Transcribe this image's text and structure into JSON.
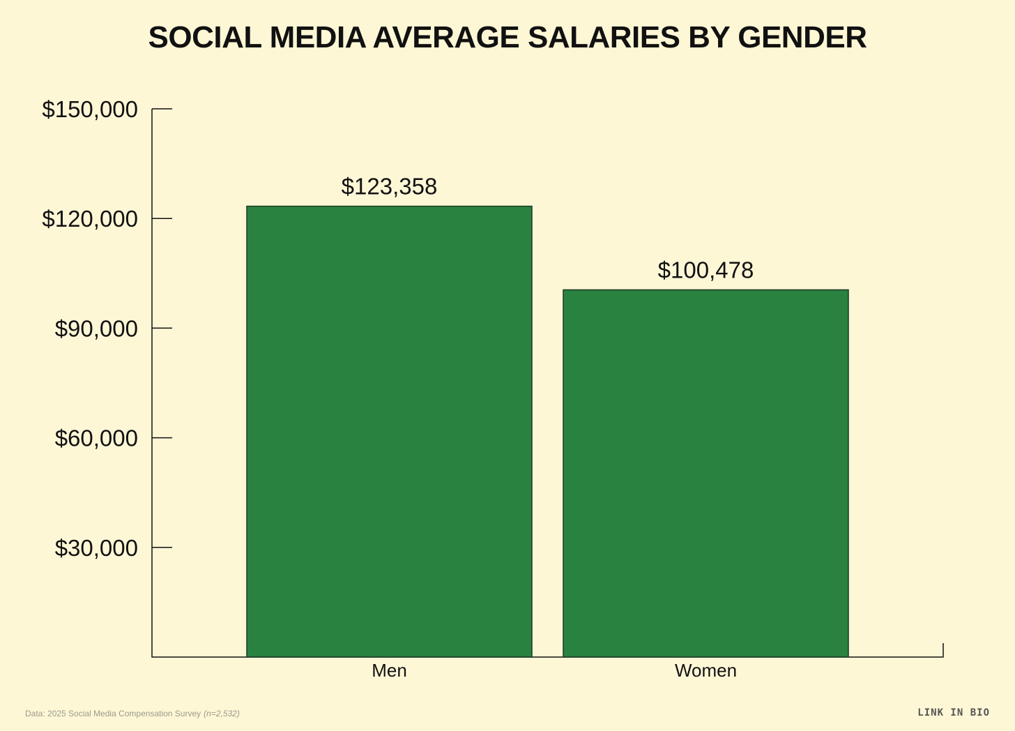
{
  "chart_data": {
    "type": "bar",
    "title": "SOCIAL MEDIA AVERAGE SALARIES BY GENDER",
    "xlabel": "",
    "ylabel": "",
    "categories": [
      "Men",
      "Women"
    ],
    "values": [
      123358,
      100478
    ],
    "data_labels": [
      "$123,358",
      "$100,478"
    ],
    "ylim": [
      0,
      150000
    ],
    "yticks": [
      30000,
      60000,
      90000,
      120000,
      150000
    ],
    "ytick_labels": [
      "$30,000",
      "$60,000",
      "$90,000",
      "$120,000",
      "$150,000"
    ],
    "grid": false,
    "legend": "none",
    "bar_color": "#2a8240"
  },
  "footer": {
    "source": "Data: 2025 Social Media Compensation Survey",
    "sample": "(n=2,532)",
    "brand": "LINK IN BIO"
  },
  "colors": {
    "background": "#fef7d6",
    "text": "#111111",
    "muted": "#9a9a8a"
  }
}
